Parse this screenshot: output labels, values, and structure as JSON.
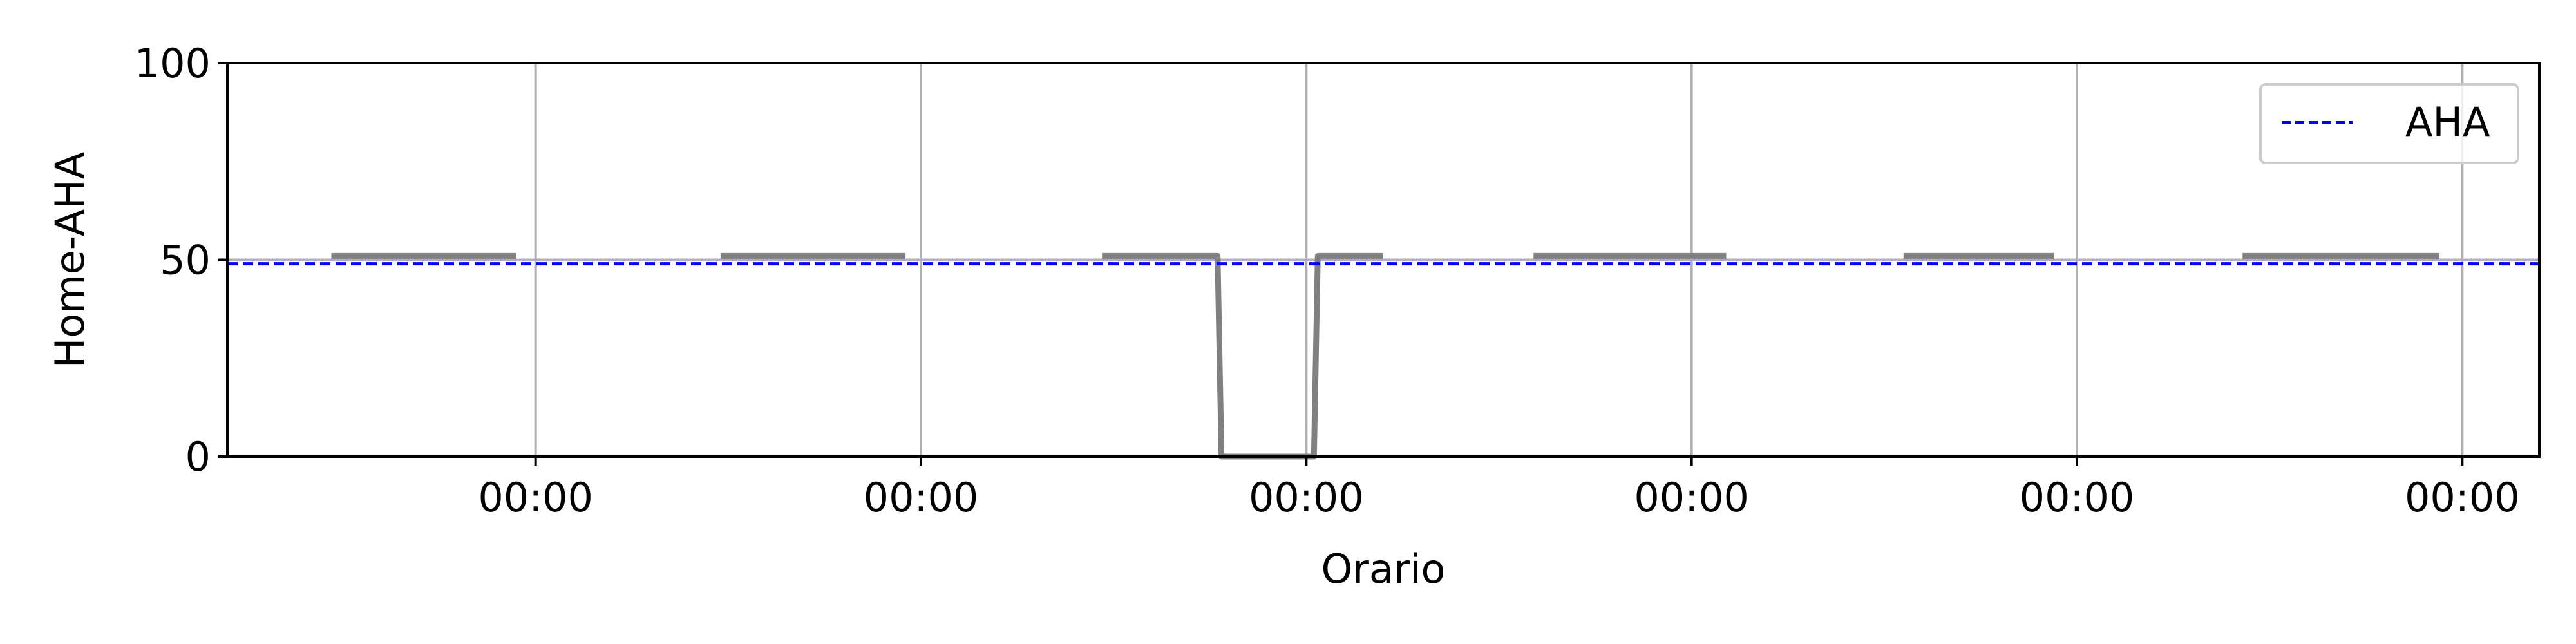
{
  "chart_data": {
    "type": "line",
    "title": "",
    "xlabel": "Orario",
    "ylabel": "Home-AHA",
    "ylim": [
      0,
      100
    ],
    "xlim": [
      -0.8,
      5.2
    ],
    "yticks": [
      0,
      50,
      100
    ],
    "xticks": [
      0,
      1,
      2,
      3,
      4,
      5
    ],
    "xtick_labels": [
      "00:00",
      "00:00",
      "00:00",
      "00:00",
      "00:00",
      "00:00"
    ],
    "grid": true,
    "legend_position": "top-right",
    "series": [
      {
        "color": "#808080",
        "style": "solid",
        "segments": [
          [
            [
              -0.53,
              51
            ],
            [
              -0.05,
              51
            ]
          ],
          [
            [
              0.48,
              51
            ],
            [
              0.96,
              51
            ]
          ],
          [
            [
              1.47,
              51
            ],
            [
              1.77,
              51
            ],
            [
              1.78,
              0
            ],
            [
              2.02,
              0
            ],
            [
              2.03,
              51
            ],
            [
              2.2,
              51
            ]
          ],
          [
            [
              2.59,
              51
            ],
            [
              3.09,
              51
            ]
          ],
          [
            [
              3.55,
              51
            ],
            [
              3.94,
              51
            ]
          ],
          [
            [
              4.43,
              51
            ],
            [
              4.94,
              51
            ]
          ]
        ]
      },
      {
        "name": "AHA",
        "color": "#0000ff",
        "style": "dashed",
        "hline": 49
      }
    ]
  }
}
